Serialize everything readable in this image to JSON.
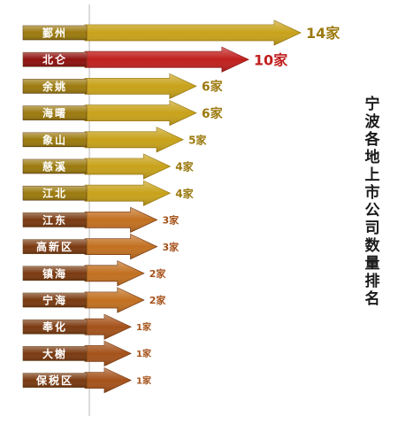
{
  "chart_data": {
    "type": "bar",
    "orientation": "horizontal",
    "title": "宁波各地上市公司数量排名",
    "categories": [
      "鄞州",
      "北仑",
      "余姚",
      "海曙",
      "象山",
      "慈溪",
      "江北",
      "江东",
      "高新区",
      "镇海",
      "宁海",
      "奉化",
      "大榭",
      "保税区"
    ],
    "values": [
      14,
      10,
      6,
      6,
      5,
      4,
      4,
      3,
      3,
      2,
      2,
      1,
      1,
      1
    ],
    "value_labels": [
      "14家",
      "10家",
      "6家",
      "6家",
      "5家",
      "4家",
      "4家",
      "3家",
      "3家",
      "2家",
      "2家",
      "1家",
      "1家",
      "1家"
    ],
    "xlim": [
      0,
      14
    ],
    "grid": false,
    "legend": "none",
    "colors": {
      "gold": "#c8a21a",
      "gold_dark": "#9c7a0e",
      "red": "#c0201e",
      "red_dark": "#8f1210",
      "orange_brown": "#c27020",
      "brown": "#a5521a",
      "brown_dark": "#7a3a10"
    }
  }
}
